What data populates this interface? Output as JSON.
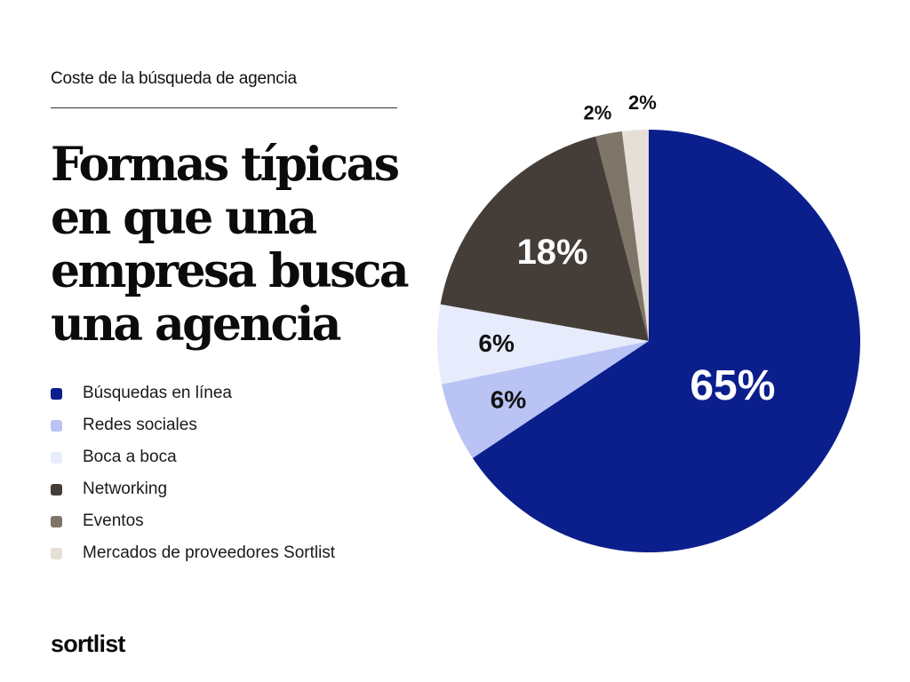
{
  "header": {
    "eyebrow": "Coste de la búsqueda de agencia",
    "headline_lines": [
      "Formas típicas",
      "en que una",
      "empresa busca",
      "una agencia"
    ]
  },
  "brand": {
    "logo_text": "sortlist"
  },
  "chart_data": {
    "type": "pie",
    "title": "Formas típicas en que una empresa busca una agencia",
    "categories": [
      "Búsquedas en línea",
      "Redes sociales",
      "Boca a boca",
      "Networking",
      "Eventos",
      "Mercados de proveedores Sortlist"
    ],
    "values": [
      65,
      6,
      6,
      18,
      2,
      2
    ],
    "data_labels": [
      "65%",
      "6%",
      "6%",
      "18%",
      "2%",
      "2%"
    ],
    "colors": [
      "#0b1f8c",
      "#b9c3f4",
      "#e6ecfb",
      "#453e38",
      "#7e7568",
      "#e6dfd8"
    ],
    "label_colors": [
      "#ffffff",
      "#111111",
      "#111111",
      "#ffffff",
      "#111111",
      "#111111"
    ],
    "start_angle_deg": 0,
    "direction": "clockwise",
    "legend_position": "left"
  }
}
